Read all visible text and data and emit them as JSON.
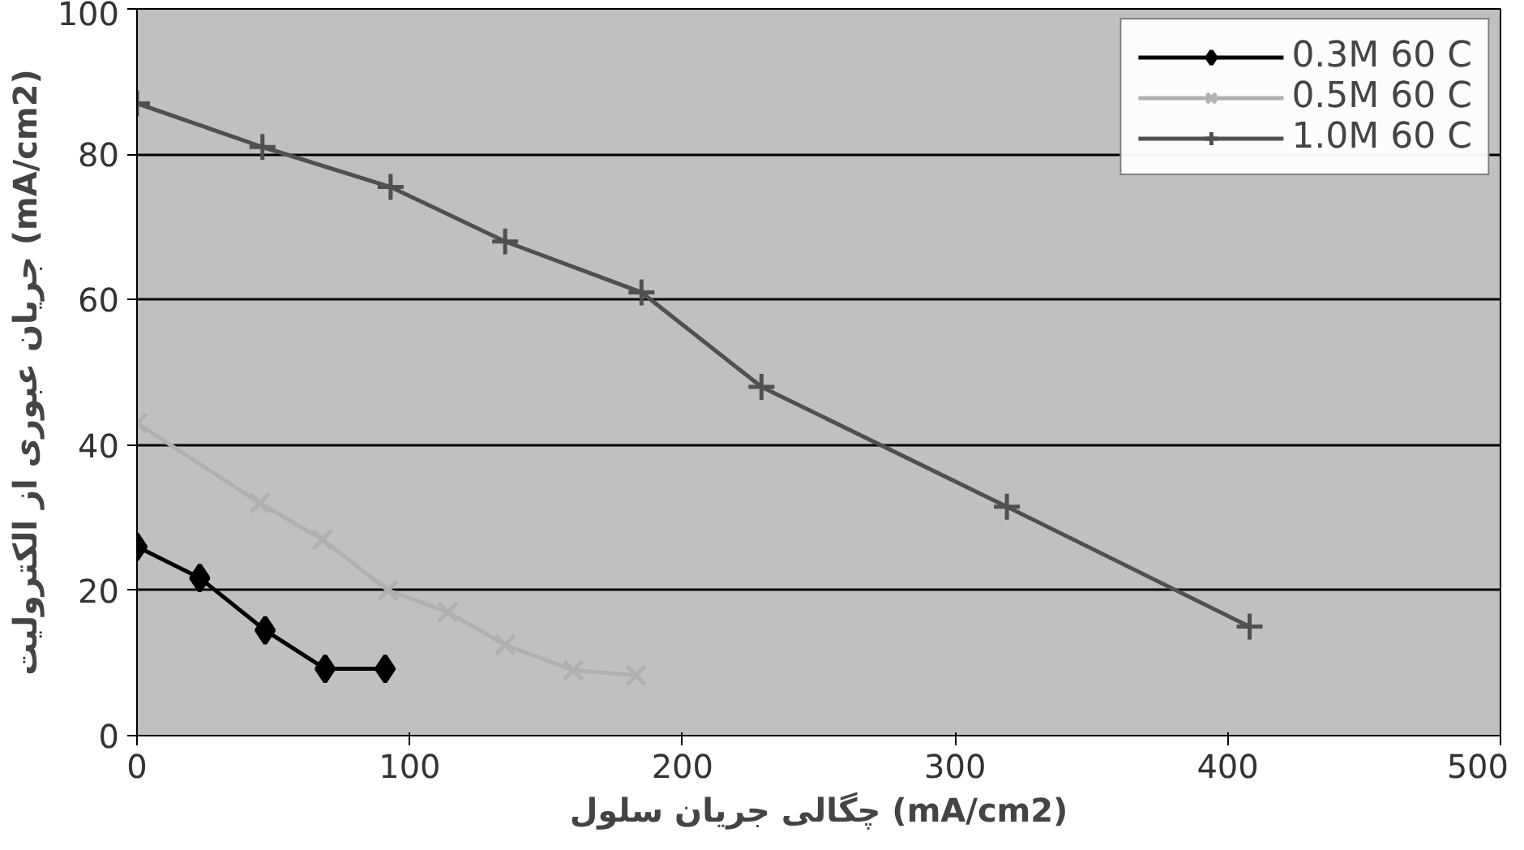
{
  "chart_data": {
    "type": "line",
    "xlabel": "چگالی جریان سلول (mA/cm2)",
    "ylabel": "جریان عبوری از الکترولیت (mA/cm2)",
    "xlim": [
      0,
      500
    ],
    "xticks": [
      0,
      100,
      200,
      300,
      400,
      500
    ],
    "ylim": [
      0,
      100
    ],
    "yticks": [
      0,
      20,
      40,
      60,
      80,
      100
    ],
    "grid": "y",
    "legend": "top right",
    "series": [
      {
        "name": "0.3M 60 C",
        "color": "#000000",
        "marker": "diamond",
        "x": [
          0,
          23,
          47,
          69,
          91
        ],
        "values": [
          26,
          21.7,
          14.5,
          9.2,
          9.2
        ]
      },
      {
        "name": "0.5M 60 C",
        "color": "#b0b0b0",
        "marker": "cross",
        "x": [
          0,
          45,
          68,
          92,
          114,
          135,
          160,
          183
        ],
        "values": [
          43,
          32,
          27,
          20,
          17,
          12.5,
          9,
          8.3
        ]
      },
      {
        "name": "1.0M 60 C",
        "color": "#505050",
        "marker": "plus",
        "x": [
          0,
          46,
          93,
          135,
          185,
          229,
          319,
          408
        ],
        "values": [
          87,
          81,
          75.5,
          68,
          61,
          48,
          31.5,
          15
        ]
      }
    ]
  }
}
